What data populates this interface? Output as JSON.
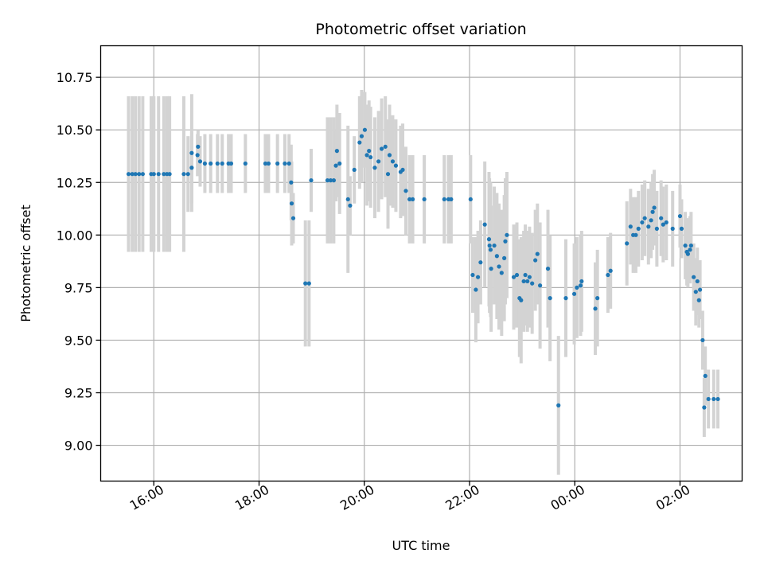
{
  "chart_data": {
    "type": "scatter",
    "title": "Photometric offset variation",
    "xlabel": "UTC time",
    "ylabel": "Photometric offset",
    "x_unit": "hours since 00:00 of first day (UTC)",
    "xlim": [
      14.99,
      27.18
    ],
    "ylim": [
      8.83,
      10.9
    ],
    "grid": true,
    "x_ticks": [
      {
        "value": 16,
        "label": "16:00"
      },
      {
        "value": 18,
        "label": "18:00"
      },
      {
        "value": 20,
        "label": "20:00"
      },
      {
        "value": 22,
        "label": "22:00"
      },
      {
        "value": 24,
        "label": "00:00"
      },
      {
        "value": 26,
        "label": "02:00"
      }
    ],
    "y_ticks": [
      {
        "value": 9.0,
        "label": "9.00"
      },
      {
        "value": 9.25,
        "label": "9.25"
      },
      {
        "value": 9.5,
        "label": "9.50"
      },
      {
        "value": 9.75,
        "label": "9.75"
      },
      {
        "value": 10.0,
        "label": "10.00"
      },
      {
        "value": 10.25,
        "label": "10.25"
      },
      {
        "value": 10.5,
        "label": "10.50"
      },
      {
        "value": 10.75,
        "label": "10.75"
      }
    ],
    "colors": {
      "point": "#1f77b4",
      "errorbar": "#d3d3d3",
      "grid": "#b0b0b0"
    },
    "series": [
      {
        "name": "Photometric offset",
        "points": [
          [
            15.52,
            10.29,
            0.37
          ],
          [
            15.59,
            10.29,
            0.37
          ],
          [
            15.65,
            10.29,
            0.37
          ],
          [
            15.72,
            10.29,
            0.37
          ],
          [
            15.79,
            10.29,
            0.37
          ],
          [
            15.95,
            10.29,
            0.37
          ],
          [
            16.0,
            10.29,
            0.37
          ],
          [
            16.09,
            10.29,
            0.37
          ],
          [
            16.19,
            10.29,
            0.37
          ],
          [
            16.25,
            10.29,
            0.37
          ],
          [
            16.3,
            10.29,
            0.37
          ],
          [
            16.57,
            10.29,
            0.37
          ],
          [
            16.65,
            10.29,
            0.18
          ],
          [
            16.72,
            10.32,
            0.17
          ],
          [
            16.72,
            10.39,
            0.28
          ],
          [
            16.83,
            10.38,
            0.1
          ],
          [
            16.84,
            10.42,
            0.08
          ],
          [
            16.88,
            10.35,
            0.12
          ],
          [
            16.97,
            10.34,
            0.14
          ],
          [
            17.08,
            10.34,
            0.14
          ],
          [
            17.21,
            10.34,
            0.14
          ],
          [
            17.3,
            10.34,
            0.14
          ],
          [
            17.42,
            10.34,
            0.14
          ],
          [
            17.47,
            10.34,
            0.14
          ],
          [
            17.74,
            10.34,
            0.14
          ],
          [
            18.12,
            10.34,
            0.14
          ],
          [
            18.18,
            10.34,
            0.14
          ],
          [
            18.35,
            10.34,
            0.14
          ],
          [
            18.49,
            10.34,
            0.14
          ],
          [
            18.57,
            10.34,
            0.14
          ],
          [
            18.61,
            10.25,
            0.18
          ],
          [
            18.62,
            10.15,
            0.2
          ],
          [
            18.65,
            10.08,
            0.12
          ],
          [
            18.88,
            9.77,
            0.3
          ],
          [
            18.95,
            9.77,
            0.3
          ],
          [
            18.99,
            10.26,
            0.15
          ],
          [
            19.3,
            10.26,
            0.3
          ],
          [
            19.36,
            10.26,
            0.3
          ],
          [
            19.42,
            10.26,
            0.3
          ],
          [
            19.46,
            10.33,
            0.17
          ],
          [
            19.48,
            10.4,
            0.22
          ],
          [
            19.53,
            10.34,
            0.24
          ],
          [
            19.69,
            10.17,
            0.35
          ],
          [
            19.73,
            10.14,
            0.14
          ],
          [
            19.81,
            10.31,
            0.16
          ],
          [
            19.91,
            10.44,
            0.22
          ],
          [
            19.95,
            10.47,
            0.22
          ],
          [
            20.01,
            10.5,
            0.18
          ],
          [
            20.05,
            10.38,
            0.24
          ],
          [
            20.09,
            10.4,
            0.24
          ],
          [
            20.12,
            10.37,
            0.24
          ],
          [
            20.2,
            10.32,
            0.24
          ],
          [
            20.27,
            10.35,
            0.24
          ],
          [
            20.33,
            10.41,
            0.24
          ],
          [
            20.4,
            10.42,
            0.24
          ],
          [
            20.45,
            10.29,
            0.26
          ],
          [
            20.48,
            10.38,
            0.24
          ],
          [
            20.54,
            10.35,
            0.22
          ],
          [
            20.6,
            10.33,
            0.22
          ],
          [
            20.69,
            10.3,
            0.22
          ],
          [
            20.73,
            10.31,
            0.22
          ],
          [
            20.79,
            10.21,
            0.21
          ],
          [
            20.86,
            10.17,
            0.21
          ],
          [
            20.92,
            10.17,
            0.21
          ],
          [
            21.14,
            10.17,
            0.21
          ],
          [
            21.52,
            10.17,
            0.21
          ],
          [
            21.6,
            10.17,
            0.21
          ],
          [
            21.65,
            10.17,
            0.21
          ],
          [
            22.02,
            10.17,
            0.21
          ],
          [
            22.06,
            9.81,
            0.18
          ],
          [
            22.12,
            9.74,
            0.25
          ],
          [
            22.16,
            9.8,
            0.22
          ],
          [
            22.21,
            9.87,
            0.2
          ],
          [
            22.29,
            10.05,
            0.3
          ],
          [
            22.37,
            9.98,
            0.32
          ],
          [
            22.38,
            9.95,
            0.32
          ],
          [
            22.4,
            9.93,
            0.32
          ],
          [
            22.41,
            9.84,
            0.3
          ],
          [
            22.47,
            9.95,
            0.28
          ],
          [
            22.52,
            9.9,
            0.3
          ],
          [
            22.56,
            9.85,
            0.3
          ],
          [
            22.61,
            9.82,
            0.3
          ],
          [
            22.66,
            9.89,
            0.3
          ],
          [
            22.68,
            9.97,
            0.3
          ],
          [
            22.71,
            10.0,
            0.3
          ],
          [
            22.84,
            9.8,
            0.25
          ],
          [
            22.9,
            9.81,
            0.25
          ],
          [
            22.95,
            9.7,
            0.28
          ],
          [
            22.98,
            9.69,
            0.3
          ],
          [
            23.03,
            9.78,
            0.24
          ],
          [
            23.06,
            9.81,
            0.24
          ],
          [
            23.1,
            9.78,
            0.24
          ],
          [
            23.14,
            9.8,
            0.24
          ],
          [
            23.19,
            9.77,
            0.24
          ],
          [
            23.25,
            9.88,
            0.24
          ],
          [
            23.29,
            9.91,
            0.24
          ],
          [
            23.34,
            9.76,
            0.3
          ],
          [
            23.49,
            9.84,
            0.28
          ],
          [
            23.53,
            9.7,
            0.3
          ],
          [
            23.69,
            9.19,
            0.33
          ],
          [
            23.83,
            9.7,
            0.28
          ],
          [
            23.99,
            9.72,
            0.24
          ],
          [
            24.04,
            9.75,
            0.24
          ],
          [
            24.11,
            9.76,
            0.24
          ],
          [
            24.13,
            9.78,
            0.24
          ],
          [
            24.39,
            9.65,
            0.22
          ],
          [
            24.43,
            9.7,
            0.23
          ],
          [
            24.63,
            9.81,
            0.18
          ],
          [
            24.68,
            9.83,
            0.18
          ],
          [
            24.99,
            9.96,
            0.2
          ],
          [
            25.06,
            10.04,
            0.18
          ],
          [
            25.11,
            10.0,
            0.18
          ],
          [
            25.16,
            10.0,
            0.18
          ],
          [
            25.21,
            10.03,
            0.18
          ],
          [
            25.28,
            10.06,
            0.18
          ],
          [
            25.33,
            10.08,
            0.18
          ],
          [
            25.4,
            10.04,
            0.18
          ],
          [
            25.45,
            10.07,
            0.18
          ],
          [
            25.48,
            10.11,
            0.18
          ],
          [
            25.51,
            10.13,
            0.18
          ],
          [
            25.56,
            10.03,
            0.18
          ],
          [
            25.64,
            10.08,
            0.18
          ],
          [
            25.68,
            10.05,
            0.18
          ],
          [
            25.74,
            10.06,
            0.18
          ],
          [
            25.86,
            10.03,
            0.18
          ],
          [
            26.0,
            10.09,
            0.15
          ],
          [
            26.03,
            10.03,
            0.14
          ],
          [
            26.1,
            9.95,
            0.16
          ],
          [
            26.13,
            9.92,
            0.16
          ],
          [
            26.15,
            9.91,
            0.16
          ],
          [
            26.19,
            9.93,
            0.16
          ],
          [
            26.21,
            9.95,
            0.16
          ],
          [
            26.26,
            9.8,
            0.16
          ],
          [
            26.3,
            9.73,
            0.16
          ],
          [
            26.33,
            9.78,
            0.16
          ],
          [
            26.36,
            9.69,
            0.13
          ],
          [
            26.38,
            9.74,
            0.14
          ],
          [
            26.43,
            9.5,
            0.14
          ],
          [
            26.46,
            9.18,
            0.14
          ],
          [
            26.48,
            9.33,
            0.14
          ],
          [
            26.54,
            9.22,
            0.14
          ],
          [
            26.64,
            9.22,
            0.14
          ],
          [
            26.72,
            9.22,
            0.14
          ]
        ]
      }
    ]
  }
}
